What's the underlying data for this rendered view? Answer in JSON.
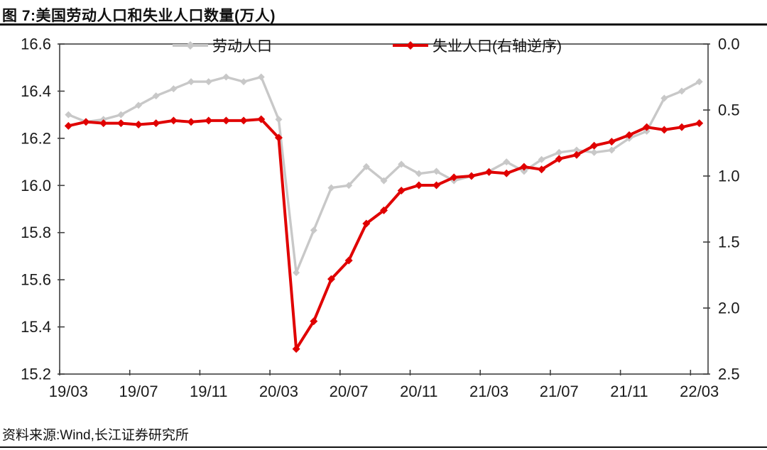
{
  "title": "图 7:美国劳动人口和失业人口数量(万人)",
  "source": "资料来源:Wind,长江证券研究所",
  "chart_data": {
    "type": "line",
    "title": "美国劳动人口和失业人口数量(万人)",
    "x": [
      "19/03",
      "19/04",
      "19/05",
      "19/06",
      "19/07",
      "19/08",
      "19/09",
      "19/10",
      "19/11",
      "19/12",
      "20/01",
      "20/02",
      "20/03",
      "20/04",
      "20/05",
      "20/06",
      "20/07",
      "20/08",
      "20/09",
      "20/10",
      "20/11",
      "20/12",
      "21/01",
      "21/02",
      "21/03",
      "21/04",
      "21/05",
      "21/06",
      "21/07",
      "21/08",
      "21/09",
      "21/10",
      "21/11",
      "21/12",
      "22/01",
      "22/02",
      "22/03"
    ],
    "x_tick_labels": [
      "19/03",
      "19/07",
      "19/11",
      "20/03",
      "20/07",
      "20/11",
      "21/03",
      "21/07",
      "21/11",
      "22/03"
    ],
    "series": [
      {
        "key": "labor-force",
        "name": "劳动人口",
        "axis": "left",
        "color": "#c8c8c8",
        "values": [
          16.3,
          16.27,
          16.28,
          16.3,
          16.34,
          16.38,
          16.41,
          16.44,
          16.44,
          16.46,
          16.44,
          16.46,
          16.28,
          15.63,
          15.81,
          15.99,
          16.0,
          16.08,
          16.02,
          16.09,
          16.05,
          16.06,
          16.02,
          16.04,
          16.06,
          16.1,
          16.06,
          16.11,
          16.14,
          16.15,
          16.14,
          16.15,
          16.2,
          16.23,
          16.37,
          16.4,
          16.44
        ]
      },
      {
        "key": "unemployed",
        "name": "失业人口(右轴逆序)",
        "axis": "right",
        "color": "#e00000",
        "values": [
          0.62,
          0.59,
          0.6,
          0.6,
          0.61,
          0.6,
          0.58,
          0.59,
          0.58,
          0.58,
          0.58,
          0.57,
          0.71,
          2.31,
          2.1,
          1.78,
          1.64,
          1.36,
          1.26,
          1.11,
          1.07,
          1.07,
          1.01,
          1.0,
          0.97,
          0.98,
          0.93,
          0.95,
          0.87,
          0.84,
          0.77,
          0.74,
          0.69,
          0.63,
          0.65,
          0.63,
          0.6
        ]
      }
    ],
    "left_axis": {
      "min": 15.2,
      "max": 16.6,
      "tick_labels": [
        "16.6",
        "16.4",
        "16.2",
        "16.0",
        "15.8",
        "15.6",
        "15.4",
        "15.2"
      ]
    },
    "right_axis": {
      "min": 0.0,
      "max": 2.5,
      "tick_labels": [
        "0.0",
        "0.5",
        "1.0",
        "1.5",
        "2.0",
        "2.5"
      ],
      "inverted": true
    },
    "grid": false,
    "legend_position": "top"
  }
}
